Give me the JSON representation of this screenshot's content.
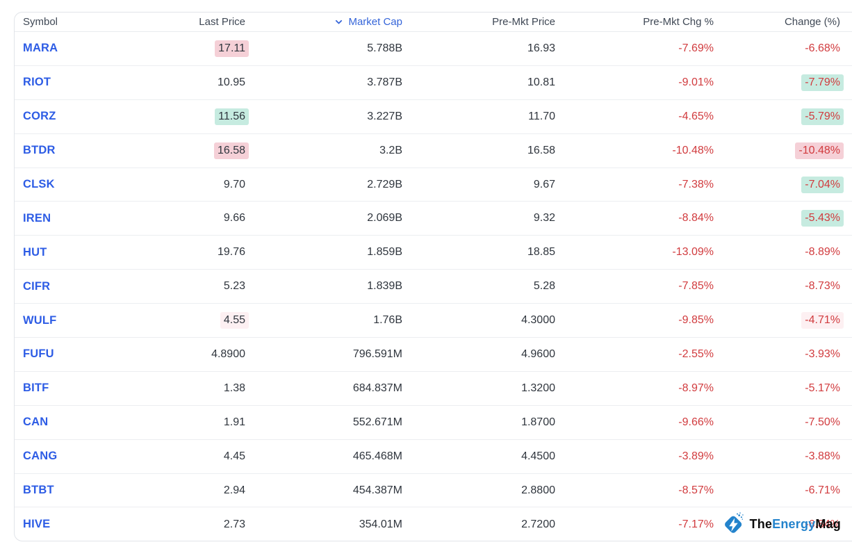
{
  "table": {
    "columns": [
      {
        "label": "Symbol",
        "align": "left",
        "sorted": false
      },
      {
        "label": "Last Price",
        "align": "right",
        "sorted": false
      },
      {
        "label": "Market Cap",
        "align": "right",
        "sorted": true,
        "sort_direction": "desc"
      },
      {
        "label": "Pre-Mkt Price",
        "align": "right",
        "sorted": false
      },
      {
        "label": "Pre-Mkt Chg %",
        "align": "right",
        "sorted": false
      },
      {
        "label": "Change (%)",
        "align": "right",
        "sorted": false
      }
    ],
    "rows": [
      {
        "symbol": "MARA",
        "last_price": "17.11",
        "last_hl": "pink",
        "market_cap": "5.788B",
        "premkt_price": "16.93",
        "premkt_chg": "-7.69%",
        "change": "-6.68%",
        "change_hl": null
      },
      {
        "symbol": "RIOT",
        "last_price": "10.95",
        "last_hl": null,
        "market_cap": "3.787B",
        "premkt_price": "10.81",
        "premkt_chg": "-9.01%",
        "change": "-7.79%",
        "change_hl": "green"
      },
      {
        "symbol": "CORZ",
        "last_price": "11.56",
        "last_hl": "green",
        "market_cap": "3.227B",
        "premkt_price": "11.70",
        "premkt_chg": "-4.65%",
        "change": "-5.79%",
        "change_hl": "green"
      },
      {
        "symbol": "BTDR",
        "last_price": "16.58",
        "last_hl": "pink",
        "market_cap": "3.2B",
        "premkt_price": "16.58",
        "premkt_chg": "-10.48%",
        "change": "-10.48%",
        "change_hl": "pink"
      },
      {
        "symbol": "CLSK",
        "last_price": "9.70",
        "last_hl": null,
        "market_cap": "2.729B",
        "premkt_price": "9.67",
        "premkt_chg": "-7.38%",
        "change": "-7.04%",
        "change_hl": "green"
      },
      {
        "symbol": "IREN",
        "last_price": "9.66",
        "last_hl": null,
        "market_cap": "2.069B",
        "premkt_price": "9.32",
        "premkt_chg": "-8.84%",
        "change": "-5.43%",
        "change_hl": "green"
      },
      {
        "symbol": "HUT",
        "last_price": "19.76",
        "last_hl": null,
        "market_cap": "1.859B",
        "premkt_price": "18.85",
        "premkt_chg": "-13.09%",
        "change": "-8.89%",
        "change_hl": null
      },
      {
        "symbol": "CIFR",
        "last_price": "5.23",
        "last_hl": null,
        "market_cap": "1.839B",
        "premkt_price": "5.28",
        "premkt_chg": "-7.85%",
        "change": "-8.73%",
        "change_hl": null
      },
      {
        "symbol": "WULF",
        "last_price": "4.55",
        "last_hl": "faint",
        "market_cap": "1.76B",
        "premkt_price": "4.3000",
        "premkt_chg": "-9.85%",
        "change": "-4.71%",
        "change_hl": "faint"
      },
      {
        "symbol": "FUFU",
        "last_price": "4.8900",
        "last_hl": null,
        "market_cap": "796.591M",
        "premkt_price": "4.9600",
        "premkt_chg": "-2.55%",
        "change": "-3.93%",
        "change_hl": null
      },
      {
        "symbol": "BITF",
        "last_price": "1.38",
        "last_hl": null,
        "market_cap": "684.837M",
        "premkt_price": "1.3200",
        "premkt_chg": "-8.97%",
        "change": "-5.17%",
        "change_hl": null
      },
      {
        "symbol": "CAN",
        "last_price": "1.91",
        "last_hl": null,
        "market_cap": "552.671M",
        "premkt_price": "1.8700",
        "premkt_chg": "-9.66%",
        "change": "-7.50%",
        "change_hl": null
      },
      {
        "symbol": "CANG",
        "last_price": "4.45",
        "last_hl": null,
        "market_cap": "465.468M",
        "premkt_price": "4.4500",
        "premkt_chg": "-3.89%",
        "change": "-3.88%",
        "change_hl": null
      },
      {
        "symbol": "BTBT",
        "last_price": "2.94",
        "last_hl": null,
        "market_cap": "454.387M",
        "premkt_price": "2.8800",
        "premkt_chg": "-8.57%",
        "change": "-6.71%",
        "change_hl": null
      },
      {
        "symbol": "HIVE",
        "last_price": "2.73",
        "last_hl": null,
        "market_cap": "354.01M",
        "premkt_price": "2.7200",
        "premkt_chg": "-7.17%",
        "change": "-6.84%",
        "change_hl": null
      }
    ]
  },
  "watermark": {
    "part1": "The",
    "part2": "Energy",
    "part3": "Mag"
  },
  "colors": {
    "symbol_blue": "#2d5ce5",
    "sorted_header_blue": "#3565d9",
    "negative_red": "#d13b3e",
    "highlight_pink": "#f5d0d7",
    "highlight_green": "#c6ebe0",
    "highlight_faint_pink": "#fdf0f2",
    "logo_blue": "#2383cc"
  }
}
